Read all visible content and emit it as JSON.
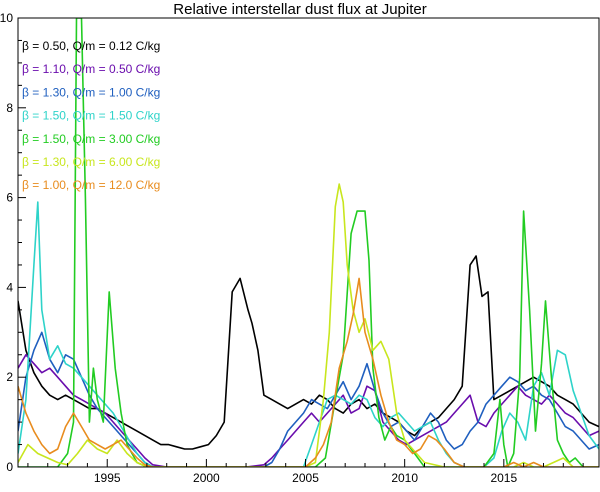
{
  "chart_data": {
    "type": "line",
    "title": "Relative interstellar dust flux at Jupiter",
    "xlabel": "",
    "ylabel": "",
    "xlim": [
      1990.5,
      2019.8
    ],
    "ylim": [
      0,
      10
    ],
    "xticks": [
      1995,
      2000,
      2005,
      2010,
      2015
    ],
    "yticks": [
      0,
      2,
      4,
      6,
      8,
      10
    ],
    "x_tick_labels": [
      "1995",
      "2000",
      "2005",
      "2010",
      "2015"
    ],
    "y_tick_labels": [
      "0",
      "2",
      "4",
      "6",
      "8",
      "10"
    ],
    "grid": false,
    "legend_position": "top-left",
    "series": [
      {
        "name": "β = 0.50, Q/m = 0.12 C/kg",
        "color": "#000000",
        "x": [
          1990.5,
          1990.9,
          1991.3,
          1991.7,
          1992.1,
          1992.5,
          1992.9,
          1993.3,
          1993.7,
          1994.1,
          1994.5,
          1994.9,
          1995.3,
          1995.7,
          1996.1,
          1996.5,
          1996.9,
          1997.3,
          1997.7,
          1998.1,
          1998.5,
          1998.9,
          1999.3,
          1999.7,
          2000.1,
          2000.5,
          2000.9,
          2001.3,
          2001.7,
          2002.1,
          2002.3,
          2002.6,
          2002.9,
          2003.3,
          2003.7,
          2004.1,
          2004.5,
          2004.9,
          2005.3,
          2005.7,
          2006.1,
          2006.5,
          2006.9,
          2007.3,
          2007.7,
          2008.1,
          2008.5,
          2008.9,
          2009.3,
          2009.7,
          2010.1,
          2010.5,
          2010.9,
          2011.3,
          2011.7,
          2012.1,
          2012.5,
          2012.9,
          2013.3,
          2013.6,
          2013.9,
          2014.2,
          2014.5,
          2014.9,
          2015.3,
          2015.7,
          2016.1,
          2016.5,
          2016.9,
          2017.3,
          2017.7,
          2018.1,
          2018.5,
          2018.9,
          2019.3,
          2019.8
        ],
        "values": [
          3.7,
          2.6,
          2.1,
          1.8,
          1.6,
          1.5,
          1.6,
          1.5,
          1.4,
          1.3,
          1.3,
          1.2,
          1.1,
          1.0,
          0.9,
          0.8,
          0.7,
          0.6,
          0.5,
          0.5,
          0.45,
          0.4,
          0.4,
          0.45,
          0.5,
          0.7,
          1.0,
          3.9,
          4.2,
          3.5,
          3.2,
          2.6,
          1.6,
          1.5,
          1.4,
          1.3,
          1.4,
          1.5,
          1.4,
          1.6,
          1.5,
          1.3,
          1.2,
          1.4,
          1.5,
          1.3,
          1.4,
          1.2,
          1.1,
          1.0,
          0.8,
          0.7,
          0.9,
          1.0,
          1.1,
          1.3,
          1.5,
          1.8,
          4.5,
          4.7,
          3.8,
          3.9,
          1.5,
          1.6,
          1.7,
          1.8,
          1.9,
          2.0,
          1.9,
          1.8,
          1.6,
          1.5,
          1.4,
          1.2,
          1.0,
          0.9
        ]
      },
      {
        "name": "β = 1.10, Q/m = 0.50 C/kg",
        "color": "#6a0dad",
        "x": [
          1990.5,
          1990.9,
          1991.3,
          1991.7,
          1992.1,
          1992.5,
          1992.9,
          1993.3,
          1993.7,
          1994.1,
          1994.5,
          1994.9,
          1995.3,
          1995.7,
          1996.1,
          1996.5,
          1996.9,
          1997.3,
          1998.0,
          1999.0,
          2000.0,
          2001.0,
          2002.0,
          2002.9,
          2003.3,
          2003.7,
          2004.1,
          2004.5,
          2004.9,
          2005.3,
          2005.7,
          2006.1,
          2006.5,
          2006.9,
          2007.3,
          2007.7,
          2008.1,
          2008.5,
          2008.9,
          2009.3,
          2009.7,
          2010.1,
          2010.5,
          2010.9,
          2011.3,
          2011.7,
          2012.1,
          2012.5,
          2012.9,
          2013.3,
          2013.7,
          2014.1,
          2014.5,
          2014.9,
          2015.3,
          2015.7,
          2016.1,
          2016.5,
          2016.9,
          2017.3,
          2017.7,
          2018.1,
          2018.5,
          2018.9,
          2019.3,
          2019.8
        ],
        "values": [
          2.2,
          2.5,
          2.3,
          2.1,
          2.2,
          2.0,
          1.8,
          1.6,
          1.5,
          1.4,
          1.3,
          1.2,
          1.0,
          0.8,
          0.6,
          0.4,
          0.2,
          0.05,
          0,
          0,
          0,
          0,
          0,
          0.05,
          0.2,
          0.4,
          0.6,
          0.8,
          1.0,
          1.2,
          1.0,
          1.2,
          1.4,
          1.6,
          1.2,
          1.3,
          1.8,
          1.7,
          1.0,
          0.8,
          0.6,
          0.5,
          0.6,
          0.7,
          0.8,
          0.9,
          1.0,
          1.2,
          1.4,
          1.6,
          1.0,
          0.9,
          1.2,
          1.4,
          1.6,
          1.8,
          1.6,
          1.5,
          1.4,
          1.6,
          1.4,
          1.2,
          1.1,
          0.9,
          0.7,
          0.8
        ]
      },
      {
        "name": "β = 1.30, Q/m = 1.00 C/kg",
        "color": "#1f5fbf",
        "x": [
          1990.5,
          1990.9,
          1991.3,
          1991.7,
          1992.1,
          1992.5,
          1992.9,
          1993.3,
          1993.7,
          1994.1,
          1994.5,
          1994.9,
          1995.3,
          1995.7,
          1996.1,
          1996.5,
          1996.9,
          1997.3,
          1998.0,
          1999.0,
          2000.0,
          2001.0,
          2002.0,
          2002.9,
          2003.3,
          2003.7,
          2004.1,
          2004.5,
          2004.9,
          2005.3,
          2005.7,
          2006.1,
          2006.5,
          2006.9,
          2007.3,
          2007.7,
          2008.1,
          2008.5,
          2008.9,
          2009.3,
          2009.7,
          2010.1,
          2010.5,
          2010.9,
          2011.3,
          2011.7,
          2012.1,
          2012.5,
          2012.9,
          2013.3,
          2013.7,
          2014.1,
          2014.5,
          2014.9,
          2015.3,
          2015.7,
          2016.1,
          2016.5,
          2016.9,
          2017.3,
          2017.7,
          2018.1,
          2018.5,
          2018.9,
          2019.3,
          2019.8
        ],
        "values": [
          0.8,
          2.0,
          2.6,
          3.0,
          2.4,
          2.1,
          2.5,
          2.4,
          2.0,
          1.6,
          1.3,
          1.1,
          0.9,
          0.7,
          0.5,
          0.3,
          0.1,
          0,
          0,
          0,
          0,
          0,
          0,
          0,
          0.1,
          0.4,
          0.8,
          1.0,
          1.2,
          1.5,
          1.4,
          1.3,
          1.6,
          1.9,
          1.5,
          1.8,
          2.3,
          1.7,
          1.2,
          0.9,
          1.0,
          0.8,
          0.6,
          0.9,
          1.2,
          1.0,
          0.6,
          0.4,
          0.5,
          0.8,
          1.0,
          1.4,
          1.6,
          1.8,
          2.0,
          1.9,
          1.7,
          1.8,
          1.6,
          1.5,
          1.2,
          0.9,
          0.8,
          0.6,
          0.4,
          0.5
        ]
      },
      {
        "name": "β = 1.50, Q/m = 1.50 C/kg",
        "color": "#2ed3c9",
        "x": [
          1990.5,
          1990.9,
          1991.3,
          1991.5,
          1991.7,
          1992.1,
          1992.5,
          1992.9,
          1993.3,
          1993.7,
          1994.1,
          1994.5,
          1994.9,
          1995.3,
          1995.7,
          1996.1,
          1996.5,
          1996.9,
          1997.3,
          1998.0,
          1999.0,
          2000.0,
          2001.0,
          2002.0,
          2003.0,
          2003.5,
          2004.0,
          2004.5,
          2004.9,
          2005.3,
          2005.7,
          2006.1,
          2006.5,
          2006.9,
          2007.3,
          2007.7,
          2008.1,
          2008.5,
          2008.9,
          2009.3,
          2009.7,
          2010.1,
          2010.5,
          2010.9,
          2011.3,
          2011.7,
          2012.1,
          2012.5,
          2013.0,
          2014.0,
          2014.5,
          2014.9,
          2015.3,
          2015.7,
          2016.1,
          2016.5,
          2016.9,
          2017.3,
          2017.7,
          2018.1,
          2018.5,
          2018.9,
          2019.3,
          2019.8
        ],
        "values": [
          0.3,
          1.5,
          4.5,
          5.9,
          3.5,
          2.4,
          2.7,
          2.3,
          2.2,
          2.0,
          1.8,
          1.6,
          1.4,
          1.2,
          0.9,
          0.6,
          0.3,
          0.1,
          0,
          0,
          0,
          0,
          0,
          0,
          0,
          0,
          0,
          0,
          0,
          0.5,
          1.0,
          1.5,
          1.6,
          1.5,
          1.4,
          1.6,
          1.5,
          1.1,
          0.9,
          1.1,
          1.2,
          1.0,
          0.8,
          0.9,
          1.0,
          0.6,
          0.3,
          0.1,
          0,
          0,
          0.2,
          0.8,
          1.2,
          1.0,
          0.6,
          1.8,
          2.1,
          1.6,
          2.6,
          2.5,
          1.7,
          1.2,
          0.7,
          0.4
        ]
      },
      {
        "name": "β = 1.50, Q/m = 3.00 C/kg",
        "color": "#22cc22",
        "x": [
          1990.5,
          1991.0,
          1991.5,
          1992.0,
          1992.5,
          1993.0,
          1993.3,
          1993.45,
          1993.7,
          1993.9,
          1994.1,
          1994.3,
          1994.5,
          1994.8,
          1995.1,
          1995.4,
          1995.7,
          1996.0,
          1996.5,
          1997.0,
          1998.0,
          1999.0,
          2000.0,
          2001.0,
          2002.0,
          2003.0,
          2004.0,
          2005.0,
          2005.5,
          2006.0,
          2006.5,
          2006.9,
          2007.3,
          2007.6,
          2008.0,
          2008.2,
          2008.4,
          2008.7,
          2009.0,
          2009.3,
          2009.6,
          2010.0,
          2011.0,
          2012.0,
          2013.0,
          2014.0,
          2014.5,
          2014.8,
          2015.0,
          2015.2,
          2015.5,
          2015.8,
          2016.0,
          2016.3,
          2016.6,
          2016.9,
          2017.1,
          2017.4,
          2017.7,
          2018.0,
          2018.3,
          2018.6,
          2019.0,
          2019.8
        ],
        "values": [
          0,
          0,
          0,
          0,
          0,
          0.3,
          1.0,
          10.0,
          10.0,
          6.0,
          1.0,
          2.2,
          1.5,
          1.0,
          3.9,
          2.2,
          1.2,
          0.5,
          0.1,
          0,
          0,
          0,
          0,
          0,
          0,
          0,
          0,
          0,
          0,
          0.2,
          1.5,
          2.5,
          5.2,
          5.7,
          5.7,
          4.6,
          2.2,
          1.1,
          0.6,
          0.9,
          0.7,
          0.6,
          0,
          0,
          0,
          0,
          0.3,
          1.5,
          0.5,
          0,
          0.3,
          2.0,
          5.7,
          3.5,
          0.8,
          2.3,
          3.7,
          2.0,
          0.6,
          0.3,
          0.1,
          0.2,
          0,
          0
        ]
      },
      {
        "name": "β = 1.30, Q/m = 6.00 C/kg",
        "color": "#c8e61e",
        "x": [
          1990.5,
          1991.0,
          1991.5,
          1992.0,
          1992.5,
          1993.0,
          1993.5,
          1994.0,
          1994.5,
          1995.0,
          1995.5,
          1996.0,
          1996.5,
          1997.0,
          1998.0,
          1999.0,
          2000.0,
          2001.0,
          2002.0,
          2003.0,
          2004.0,
          2005.0,
          2005.5,
          2005.9,
          2006.2,
          2006.5,
          2006.7,
          2006.9,
          2007.1,
          2007.4,
          2007.7,
          2008.0,
          2008.4,
          2008.8,
          2009.2,
          2009.6,
          2010.0,
          2011.0,
          2012.0,
          2013.0,
          2014.0,
          2015.0,
          2015.5,
          2016.0,
          2016.5,
          2017.0,
          2017.5,
          2018.0,
          2018.5,
          2019.0,
          2019.8
        ],
        "values": [
          0.1,
          0.5,
          0.3,
          0.2,
          0.1,
          0.05,
          0.3,
          0.6,
          0.4,
          0.3,
          0.6,
          0.3,
          0.1,
          0,
          0,
          0,
          0,
          0,
          0,
          0,
          0,
          0,
          0.1,
          1.5,
          3.0,
          5.8,
          6.3,
          5.9,
          4.5,
          3.5,
          3.0,
          3.3,
          2.6,
          2.8,
          2.4,
          1.2,
          0.6,
          0.1,
          0,
          0,
          0,
          0,
          0,
          0.1,
          0,
          0,
          0.1,
          0.2,
          0,
          0,
          0
        ]
      },
      {
        "name": "β = 1.00, Q/m = 12.0 C/kg",
        "color": "#e88c1e",
        "x": [
          1990.5,
          1990.9,
          1991.3,
          1991.7,
          1992.1,
          1992.5,
          1992.9,
          1993.3,
          1993.7,
          1994.1,
          1994.5,
          1994.9,
          1995.3,
          1995.7,
          1996.1,
          1996.5,
          1996.9,
          1997.3,
          1998.0,
          1999.0,
          2000.0,
          2001.0,
          2002.0,
          2003.0,
          2004.0,
          2005.0,
          2005.5,
          2005.9,
          2006.3,
          2006.7,
          2007.1,
          2007.4,
          2007.7,
          2008.0,
          2008.4,
          2008.8,
          2009.2,
          2009.6,
          2010.0,
          2010.4,
          2010.8,
          2011.2,
          2011.6,
          2012.0,
          2012.5,
          2013.0,
          2014.0,
          2015.0,
          2015.5,
          2016.0,
          2016.5,
          2017.0,
          2017.5,
          2018.0,
          2018.5,
          2019.0,
          2019.8
        ],
        "values": [
          1.8,
          1.2,
          0.8,
          0.5,
          0.3,
          0.4,
          0.9,
          1.2,
          0.9,
          0.6,
          0.5,
          0.4,
          0.5,
          0.6,
          0.4,
          0.2,
          0.05,
          0,
          0,
          0,
          0,
          0,
          0,
          0,
          0,
          0,
          0.2,
          0.5,
          1.0,
          2.2,
          2.8,
          3.4,
          4.2,
          3.0,
          2.4,
          1.6,
          1.0,
          0.6,
          0.5,
          0.3,
          0.4,
          0.7,
          0.6,
          0.4,
          0.1,
          0,
          0,
          0,
          0.1,
          0,
          0.1,
          0,
          0,
          0,
          0,
          0,
          0
        ]
      }
    ]
  }
}
